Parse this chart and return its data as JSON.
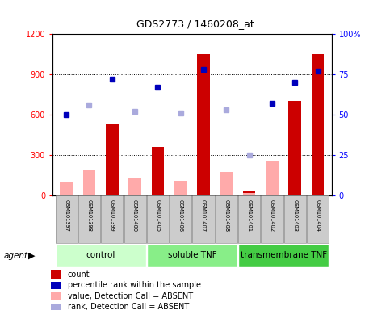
{
  "title": "GDS2773 / 1460208_at",
  "samples": [
    "GSM101397",
    "GSM101398",
    "GSM101399",
    "GSM101400",
    "GSM101405",
    "GSM101406",
    "GSM101407",
    "GSM101408",
    "GSM101401",
    "GSM101402",
    "GSM101403",
    "GSM101404"
  ],
  "count_present": [
    0,
    0,
    530,
    0,
    360,
    0,
    1050,
    0,
    30,
    0,
    700,
    1050
  ],
  "value_absent": [
    100,
    185,
    0,
    130,
    0,
    110,
    0,
    175,
    20,
    255,
    0,
    0
  ],
  "rank_present": [
    50,
    null,
    72,
    null,
    67,
    null,
    78,
    null,
    null,
    57,
    70,
    77
  ],
  "rank_absent": [
    null,
    56,
    null,
    52,
    null,
    51,
    null,
    53,
    25,
    null,
    null,
    null
  ],
  "ylim_left": [
    0,
    1200
  ],
  "ylim_right": [
    0,
    100
  ],
  "yticks_left": [
    0,
    300,
    600,
    900,
    1200
  ],
  "ytick_labels_left": [
    "0",
    "300",
    "600",
    "900",
    "1200"
  ],
  "yticks_right": [
    0,
    25,
    50,
    75,
    100
  ],
  "ytick_labels_right": [
    "0",
    "25",
    "50",
    "75",
    "100%"
  ],
  "color_count": "#cc0000",
  "color_value_absent": "#ffaaaa",
  "color_rank_present": "#0000bb",
  "color_rank_absent": "#aaaadd",
  "bar_width": 0.55,
  "group_colors": [
    "#ccffcc",
    "#88ee88",
    "#44cc44"
  ],
  "group_labels": [
    "control",
    "soluble TNF",
    "transmembrane TNF"
  ],
  "group_ranges": [
    [
      0,
      3
    ],
    [
      4,
      7
    ],
    [
      8,
      11
    ]
  ],
  "legend_items": [
    {
      "color": "#cc0000",
      "label": "count"
    },
    {
      "color": "#0000bb",
      "label": "percentile rank within the sample"
    },
    {
      "color": "#ffaaaa",
      "label": "value, Detection Call = ABSENT"
    },
    {
      "color": "#aaaadd",
      "label": "rank, Detection Call = ABSENT"
    }
  ],
  "gridline_vals": [
    300,
    600,
    900
  ]
}
